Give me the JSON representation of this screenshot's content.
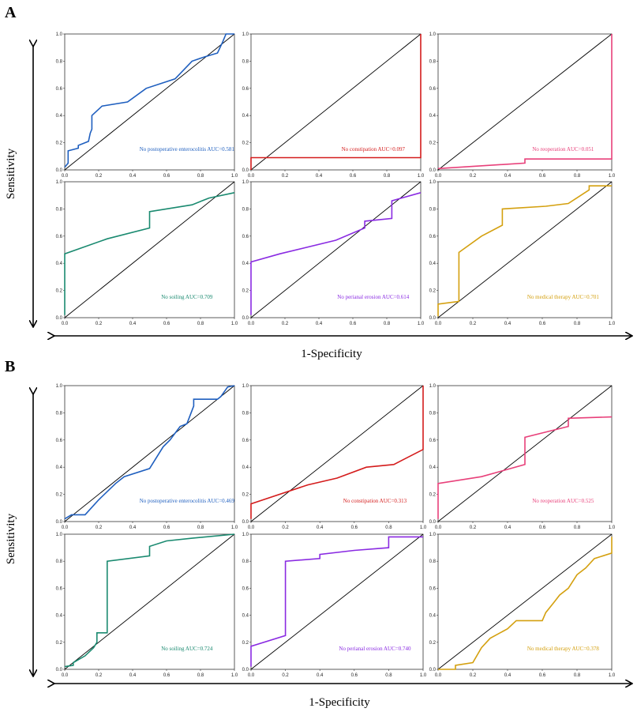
{
  "figure": {
    "xlabel": "1-Specificity",
    "ylabel": "Sensitivity",
    "panels": [
      "A",
      "B"
    ]
  },
  "chart_data": [
    {
      "type": "line",
      "panel": "A",
      "row": 0,
      "col": 0,
      "label": "No postoperative enterocolitis AUC=0.581",
      "color": "#1f5fbf",
      "xlim": [
        0,
        1
      ],
      "ylim": [
        0,
        1
      ],
      "x_ticks": [
        "0.0",
        "0.2",
        "0.4",
        "0.6",
        "0.8",
        "1.0"
      ],
      "y_ticks": [
        "0.0",
        "0.2",
        "0.4",
        "0.6",
        "0.8",
        "1.0"
      ],
      "x": [
        0,
        0.02,
        0.02,
        0.08,
        0.08,
        0.14,
        0.15,
        0.16,
        0.16,
        0.22,
        0.37,
        0.48,
        0.65,
        0.75,
        0.82,
        0.9,
        0.93,
        0.95,
        1.0
      ],
      "y": [
        0.02,
        0.05,
        0.14,
        0.16,
        0.18,
        0.21,
        0.27,
        0.3,
        0.4,
        0.47,
        0.5,
        0.6,
        0.67,
        0.8,
        0.83,
        0.86,
        0.94,
        1.0,
        1.0
      ]
    },
    {
      "type": "line",
      "panel": "A",
      "row": 0,
      "col": 1,
      "label": "No constipation AUC=0.097",
      "color": "#d41c1c",
      "xlim": [
        0,
        1
      ],
      "ylim": [
        0,
        1
      ],
      "x_ticks": [
        "0.0",
        "0.2",
        "0.4",
        "0.6",
        "0.8",
        "1.0"
      ],
      "y_ticks": [
        "0.0",
        "0.2",
        "0.4",
        "0.6",
        "0.8",
        "1.0"
      ],
      "x": [
        0,
        0,
        1.0,
        1.0
      ],
      "y": [
        0,
        0.09,
        0.09,
        1.0
      ]
    },
    {
      "type": "line",
      "panel": "A",
      "row": 0,
      "col": 2,
      "label": "No reoperation AUC=0.051",
      "color": "#e8407a",
      "xlim": [
        0,
        1
      ],
      "ylim": [
        0,
        1
      ],
      "x_ticks": [
        "0.0",
        "0.2",
        "0.4",
        "0.6",
        "0.8",
        "1.0"
      ],
      "y_ticks": [
        "0.0",
        "0.2",
        "0.4",
        "0.6",
        "0.8",
        "1.0"
      ],
      "x": [
        0,
        0.5,
        0.5,
        1.0,
        1.0
      ],
      "y": [
        0.01,
        0.05,
        0.08,
        0.08,
        1.0
      ]
    },
    {
      "type": "line",
      "panel": "A",
      "row": 1,
      "col": 0,
      "label": "No soiling AUC=0.709",
      "color": "#1a8a70",
      "xlim": [
        0,
        1
      ],
      "ylim": [
        0,
        1
      ],
      "x_ticks": [
        "0.0",
        "0.2",
        "0.4",
        "0.6",
        "0.8",
        "1.0"
      ],
      "y_ticks": [
        "0.0",
        "0.2",
        "0.4",
        "0.6",
        "0.8",
        "1.0"
      ],
      "x": [
        0,
        0,
        0.25,
        0.5,
        0.5,
        0.75,
        0.85,
        1.0
      ],
      "y": [
        0.02,
        0.47,
        0.58,
        0.66,
        0.78,
        0.83,
        0.88,
        0.92
      ]
    },
    {
      "type": "line",
      "panel": "A",
      "row": 1,
      "col": 1,
      "label": "No perianal erosion AUC=0.614",
      "color": "#8a2be2",
      "xlim": [
        0,
        1
      ],
      "ylim": [
        0,
        1
      ],
      "x_ticks": [
        "0.0",
        "0.2",
        "0.4",
        "0.6",
        "0.8",
        "1.0"
      ],
      "y_ticks": [
        "0.0",
        "0.2",
        "0.4",
        "0.6",
        "0.8",
        "1.0"
      ],
      "x": [
        0,
        0,
        0.17,
        0.5,
        0.67,
        0.67,
        0.83,
        0.83,
        1.0
      ],
      "y": [
        0.02,
        0.41,
        0.47,
        0.57,
        0.66,
        0.71,
        0.73,
        0.86,
        0.92
      ]
    },
    {
      "type": "line",
      "panel": "A",
      "row": 1,
      "col": 2,
      "label": "No medical therapy AUC=0.701",
      "color": "#d4a00f",
      "xlim": [
        0,
        1
      ],
      "ylim": [
        0,
        1
      ],
      "x_ticks": [
        "0.0",
        "0.2",
        "0.4",
        "0.6",
        "0.8",
        "1.0"
      ],
      "y_ticks": [
        "0.0",
        "0.2",
        "0.4",
        "0.6",
        "0.8",
        "1.0"
      ],
      "x": [
        0,
        0,
        0.12,
        0.12,
        0.25,
        0.37,
        0.37,
        0.62,
        0.75,
        0.87,
        0.87,
        1.0
      ],
      "y": [
        0.01,
        0.1,
        0.12,
        0.48,
        0.6,
        0.68,
        0.8,
        0.82,
        0.84,
        0.94,
        0.97,
        0.97
      ]
    },
    {
      "type": "line",
      "panel": "B",
      "row": 0,
      "col": 0,
      "label": "No postoperative enterocolitis AUC=0.469",
      "color": "#1f5fbf",
      "xlim": [
        0,
        1
      ],
      "ylim": [
        0,
        1
      ],
      "x_ticks": [
        "0.0",
        "0.2",
        "0.4",
        "0.6",
        "0.8",
        "1.0"
      ],
      "y_ticks": [
        "0.0",
        "0.2",
        "0.4",
        "0.6",
        "0.8",
        "1.0"
      ],
      "x": [
        0,
        0.04,
        0.12,
        0.2,
        0.3,
        0.35,
        0.5,
        0.58,
        0.62,
        0.68,
        0.72,
        0.76,
        0.76,
        0.9,
        0.92,
        0.96,
        1.0
      ],
      "y": [
        0.02,
        0.05,
        0.05,
        0.16,
        0.28,
        0.33,
        0.39,
        0.55,
        0.6,
        0.7,
        0.72,
        0.85,
        0.9,
        0.9,
        0.92,
        0.99,
        1.0
      ]
    },
    {
      "type": "line",
      "panel": "B",
      "row": 0,
      "col": 1,
      "label": "No constipation AUC=0.313",
      "color": "#d41c1c",
      "xlim": [
        0,
        1
      ],
      "ylim": [
        0,
        1
      ],
      "x_ticks": [
        "0.0",
        "0.2",
        "0.4",
        "0.6",
        "0.8",
        "1.0"
      ],
      "y_ticks": [
        "0.0",
        "0.2",
        "0.4",
        "0.6",
        "0.8",
        "1.0"
      ],
      "x": [
        0,
        0,
        0.33,
        0.5,
        0.67,
        0.83,
        1.0,
        1.0
      ],
      "y": [
        0.02,
        0.13,
        0.27,
        0.32,
        0.4,
        0.42,
        0.53,
        1.0
      ]
    },
    {
      "type": "line",
      "panel": "B",
      "row": 0,
      "col": 2,
      "label": "No reoperation AUC=0.525",
      "color": "#e8407a",
      "xlim": [
        0,
        1
      ],
      "ylim": [
        0,
        1
      ],
      "x_ticks": [
        "0.0",
        "0.2",
        "0.4",
        "0.6",
        "0.8",
        "1.0"
      ],
      "y_ticks": [
        "0.0",
        "0.2",
        "0.4",
        "0.6",
        "0.8",
        "1.0"
      ],
      "x": [
        0,
        0,
        0.25,
        0.5,
        0.5,
        0.75,
        0.75,
        1.0
      ],
      "y": [
        0.02,
        0.28,
        0.33,
        0.42,
        0.62,
        0.7,
        0.76,
        0.77
      ]
    },
    {
      "type": "line",
      "panel": "B",
      "row": 1,
      "col": 0,
      "label": "No soiling AUC=0.724",
      "color": "#1a8a70",
      "xlim": [
        0,
        1
      ],
      "ylim": [
        0,
        1
      ],
      "x_ticks": [
        "0.0",
        "0.2",
        "0.4",
        "0.6",
        "0.8",
        "1.0"
      ],
      "y_ticks": [
        "0.0",
        "0.2",
        "0.4",
        "0.6",
        "0.8",
        "1.0"
      ],
      "x": [
        0,
        0.05,
        0.05,
        0.12,
        0.17,
        0.19,
        0.19,
        0.25,
        0.25,
        0.5,
        0.5,
        0.6,
        0.75,
        1.0
      ],
      "y": [
        0.02,
        0.03,
        0.05,
        0.1,
        0.16,
        0.2,
        0.27,
        0.27,
        0.8,
        0.84,
        0.91,
        0.95,
        0.97,
        1.0
      ]
    },
    {
      "type": "line",
      "panel": "B",
      "row": 1,
      "col": 1,
      "label": "No perianal erosion AUC=0.740",
      "color": "#8a2be2",
      "xlim": [
        0,
        1
      ],
      "ylim": [
        0,
        1
      ],
      "x_ticks": [
        "0.0",
        "0.2",
        "0.4",
        "0.6",
        "0.8",
        "1.0"
      ],
      "y_ticks": [
        "0.0",
        "0.2",
        "0.4",
        "0.6",
        "0.8",
        "1.0"
      ],
      "x": [
        0,
        0,
        0.2,
        0.2,
        0.4,
        0.4,
        0.6,
        0.8,
        0.8,
        1.0
      ],
      "y": [
        0.02,
        0.17,
        0.25,
        0.8,
        0.82,
        0.85,
        0.88,
        0.9,
        0.98,
        0.98
      ]
    },
    {
      "type": "line",
      "panel": "B",
      "row": 1,
      "col": 2,
      "label": "No medical therapy AUC=0.378",
      "color": "#d4a00f",
      "xlim": [
        0,
        1
      ],
      "ylim": [
        0,
        1
      ],
      "x_ticks": [
        "0.0",
        "0.2",
        "0.4",
        "0.6",
        "0.8",
        "1.0"
      ],
      "y_ticks": [
        "0.0",
        "0.2",
        "0.4",
        "0.6",
        "0.8",
        "1.0"
      ],
      "x": [
        0,
        0.1,
        0.1,
        0.2,
        0.25,
        0.3,
        0.4,
        0.45,
        0.6,
        0.62,
        0.67,
        0.7,
        0.75,
        0.8,
        0.85,
        0.9,
        1.0,
        1.0
      ],
      "y": [
        0.0,
        0.0,
        0.03,
        0.05,
        0.16,
        0.23,
        0.3,
        0.36,
        0.36,
        0.42,
        0.5,
        0.55,
        0.6,
        0.7,
        0.75,
        0.82,
        0.86,
        0.98
      ]
    }
  ]
}
